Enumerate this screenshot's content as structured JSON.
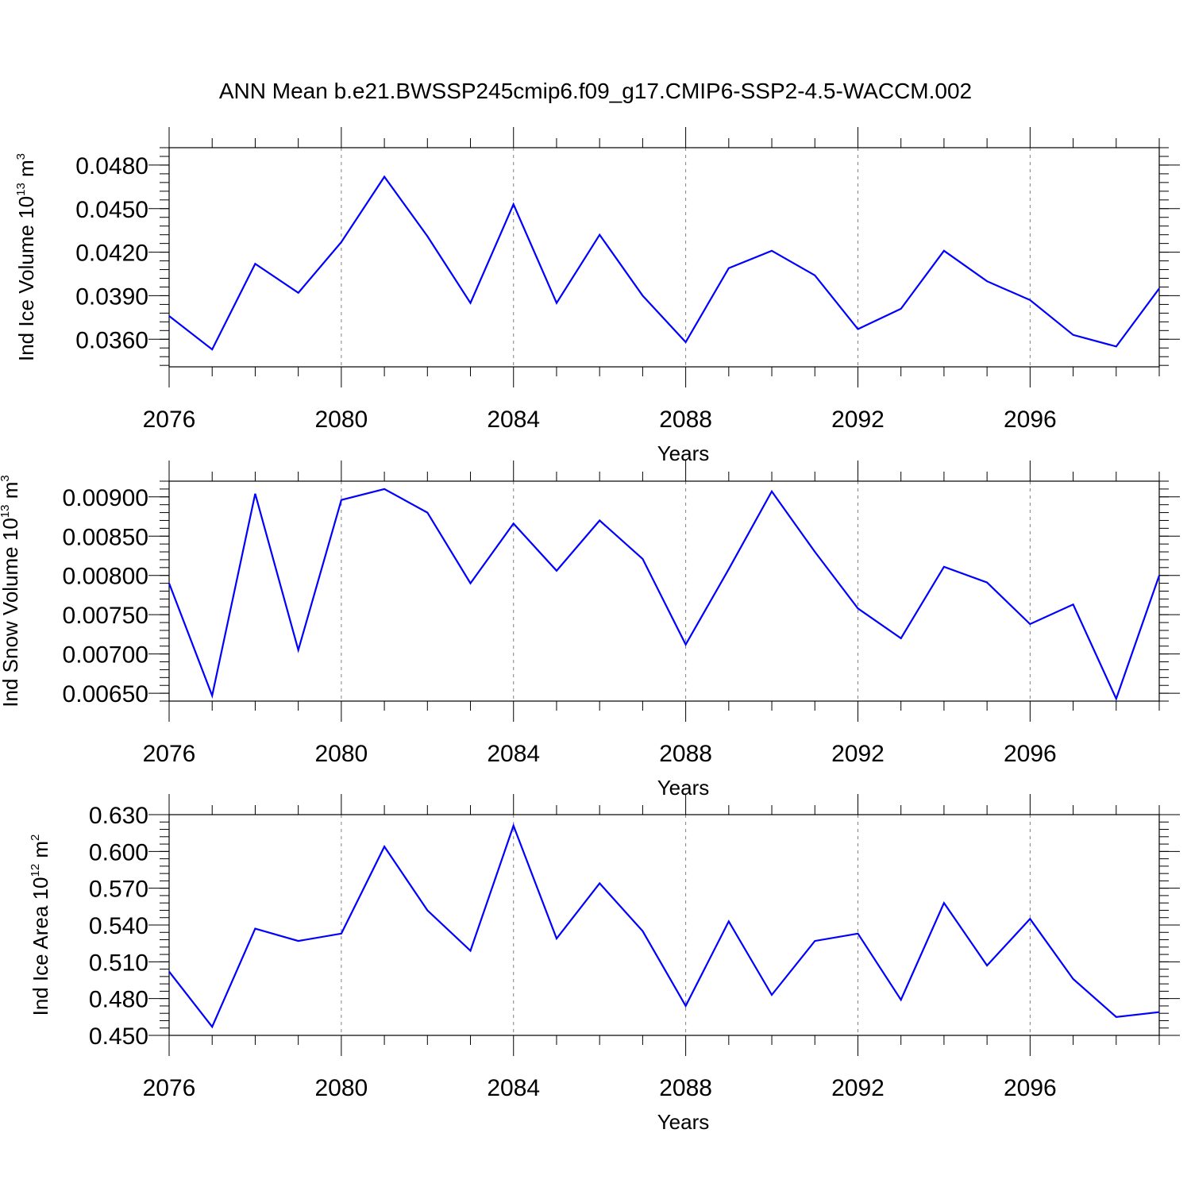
{
  "title": "ANN Mean b.e21.BWSSP245cmip6.f09_g17.CMIP6-SSP2-4.5-WACCM.002",
  "colors": {
    "line": "#0000ff",
    "axes": "#000000",
    "grid": "#808080"
  },
  "chart_data": [
    {
      "type": "line",
      "ylabel": {
        "main": "Ind Ice Volume 10",
        "exp": "13",
        "unit": " m",
        "unit_exp": "3"
      },
      "xlabel": "Years",
      "xlim": [
        2076,
        2099
      ],
      "ylim": [
        0.0341,
        0.0492
      ],
      "xticks": [
        2076,
        2080,
        2084,
        2088,
        2092,
        2096
      ],
      "yticks": [
        0.036,
        0.039,
        0.042,
        0.045,
        0.048
      ],
      "ytick_labels": [
        "0.0360",
        "0.0390",
        "0.0420",
        "0.0450",
        "0.0480"
      ],
      "yminor_step": 0.0006,
      "x": [
        2076,
        2077,
        2078,
        2079,
        2080,
        2081,
        2082,
        2083,
        2084,
        2085,
        2086,
        2087,
        2088,
        2089,
        2090,
        2091,
        2092,
        2093,
        2094,
        2095,
        2096,
        2097,
        2098,
        2099
      ],
      "values": [
        0.0376,
        0.0353,
        0.0412,
        0.0392,
        0.0427,
        0.0472,
        0.0431,
        0.0385,
        0.0453,
        0.0385,
        0.0432,
        0.039,
        0.0358,
        0.0409,
        0.0421,
        0.0404,
        0.0367,
        0.0381,
        0.0421,
        0.04,
        0.0387,
        0.0363,
        0.0355,
        0.0395
      ]
    },
    {
      "type": "line",
      "ylabel": {
        "main": "Ind Snow Volume 10",
        "exp": "13",
        "unit": " m",
        "unit_exp": "3"
      },
      "xlabel": "Years",
      "xlim": [
        2076,
        2099
      ],
      "ylim": [
        0.0064,
        0.0092
      ],
      "xticks": [
        2076,
        2080,
        2084,
        2088,
        2092,
        2096
      ],
      "yticks": [
        0.0065,
        0.007,
        0.0075,
        0.008,
        0.0085,
        0.009
      ],
      "ytick_labels": [
        "0.00650",
        "0.00700",
        "0.00750",
        "0.00800",
        "0.00850",
        "0.00900"
      ],
      "yminor_step": 0.0001,
      "x": [
        2076,
        2077,
        2078,
        2079,
        2080,
        2081,
        2082,
        2083,
        2084,
        2085,
        2086,
        2087,
        2088,
        2089,
        2090,
        2091,
        2092,
        2093,
        2094,
        2095,
        2096,
        2097,
        2098,
        2099
      ],
      "values": [
        0.0079,
        0.00647,
        0.00904,
        0.00705,
        0.00896,
        0.0091,
        0.0088,
        0.0079,
        0.00866,
        0.00806,
        0.0087,
        0.00821,
        0.00712,
        0.00808,
        0.00907,
        0.0083,
        0.00758,
        0.0072,
        0.00811,
        0.00791,
        0.00738,
        0.00763,
        0.00643,
        0.008
      ]
    },
    {
      "type": "line",
      "ylabel": {
        "main": "Ind Ice Area 10",
        "exp": "12",
        "unit": " m",
        "unit_exp": "2"
      },
      "xlabel": "Years",
      "xlim": [
        2076,
        2099
      ],
      "ylim": [
        0.45,
        0.63
      ],
      "xticks": [
        2076,
        2080,
        2084,
        2088,
        2092,
        2096
      ],
      "yticks": [
        0.45,
        0.48,
        0.51,
        0.54,
        0.57,
        0.6,
        0.63
      ],
      "ytick_labels": [
        "0.450",
        "0.480",
        "0.510",
        "0.540",
        "0.570",
        "0.600",
        "0.630"
      ],
      "yminor_step": 0.006,
      "x": [
        2076,
        2077,
        2078,
        2079,
        2080,
        2081,
        2082,
        2083,
        2084,
        2085,
        2086,
        2087,
        2088,
        2089,
        2090,
        2091,
        2092,
        2093,
        2094,
        2095,
        2096,
        2097,
        2098,
        2099
      ],
      "values": [
        0.502,
        0.457,
        0.537,
        0.527,
        0.533,
        0.604,
        0.552,
        0.519,
        0.621,
        0.529,
        0.574,
        0.535,
        0.474,
        0.543,
        0.483,
        0.527,
        0.533,
        0.479,
        0.558,
        0.507,
        0.545,
        0.496,
        0.465,
        0.469
      ]
    }
  ]
}
